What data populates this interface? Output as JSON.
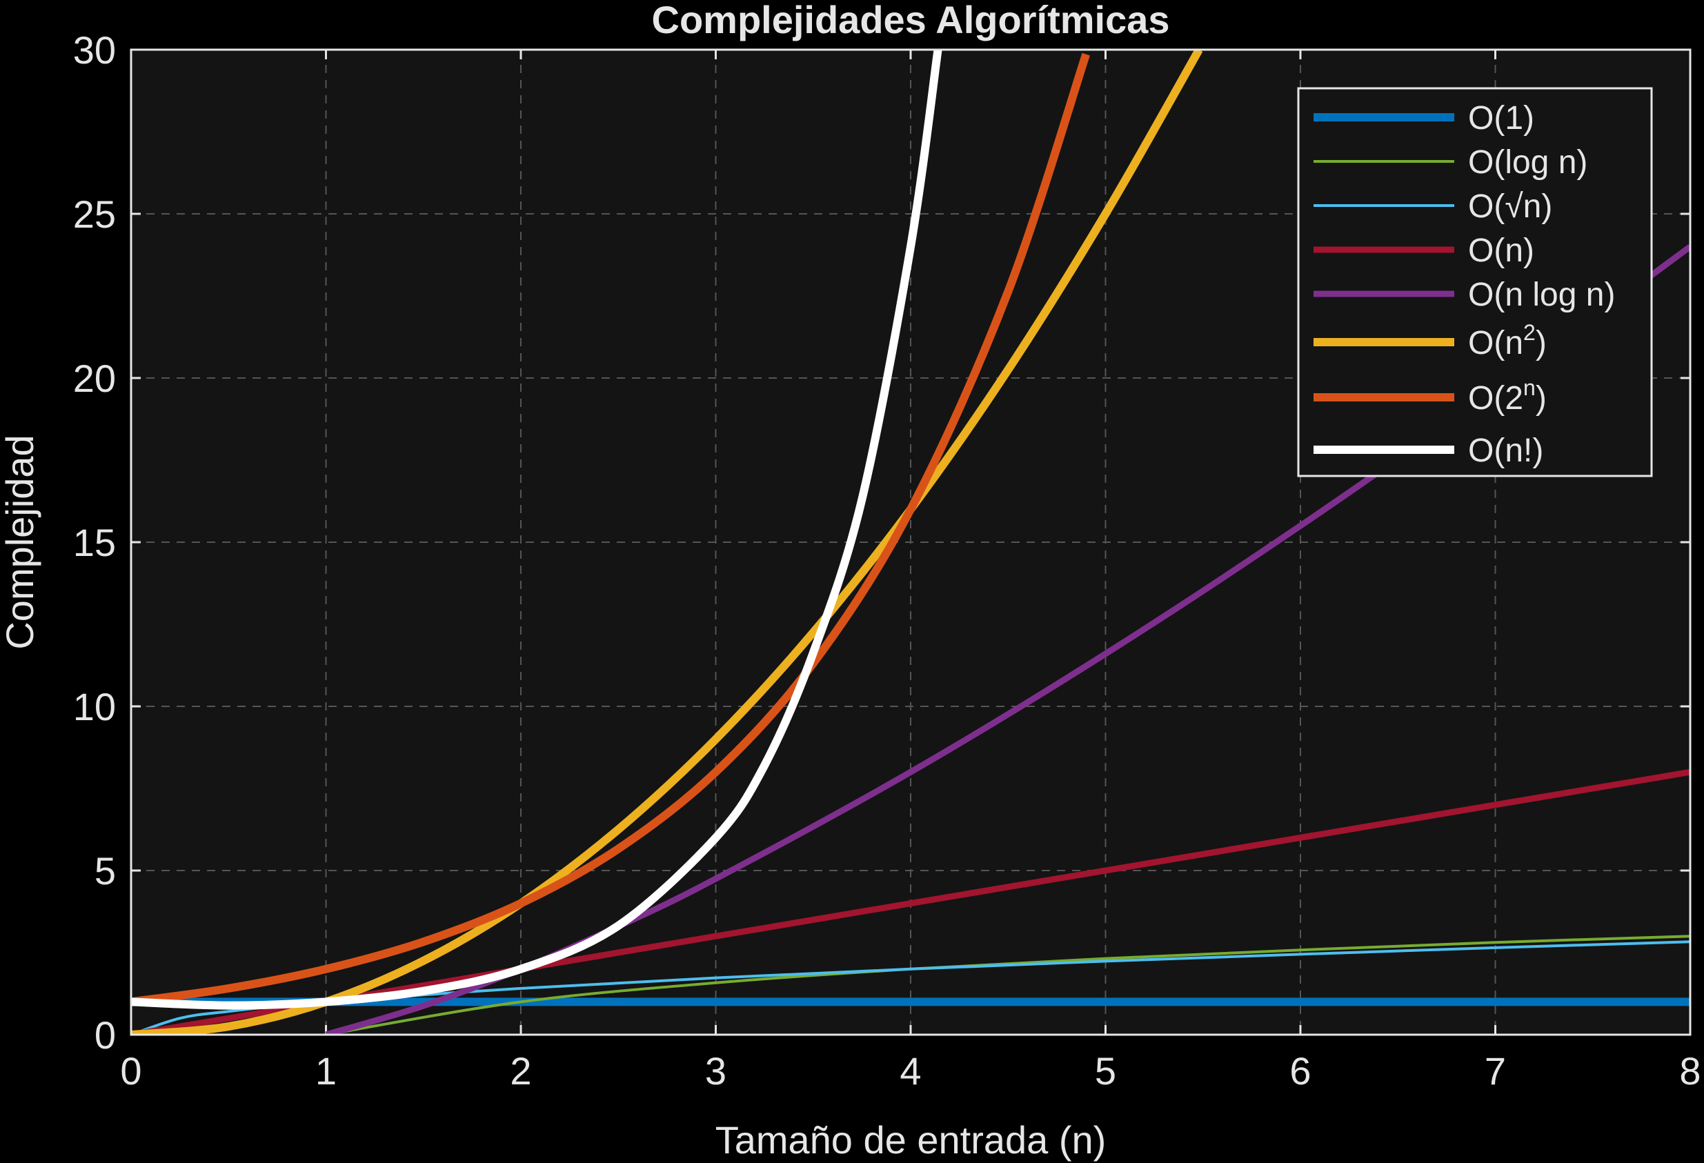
{
  "chart_data": {
    "type": "line",
    "title": "Complejidades Algorítmicas",
    "xlabel": "Tamaño de entrada (n)",
    "ylabel": "Complejidad",
    "xlim": [
      0,
      8
    ],
    "ylim": [
      0,
      30
    ],
    "xticks": [
      "0",
      "1",
      "2",
      "3",
      "4",
      "5",
      "6",
      "7",
      "8"
    ],
    "yticks": [
      "0",
      "5",
      "10",
      "15",
      "20",
      "25",
      "30"
    ],
    "grid": true,
    "legend_position": "top-right",
    "background": "#141414",
    "series": [
      {
        "name": "O(1)",
        "name_base": "O(1)",
        "name_sup": "",
        "name_end": "",
        "color": "#0072BD",
        "width": "thick",
        "points": [
          [
            0,
            1
          ],
          [
            8,
            1
          ]
        ]
      },
      {
        "name": "O(log n)",
        "name_base": "O(log n)",
        "name_sup": "",
        "name_end": "",
        "color": "#77AC30",
        "width": "thin",
        "points": [
          [
            1,
            0
          ],
          [
            2,
            1
          ],
          [
            3,
            1.58
          ],
          [
            4,
            2
          ],
          [
            5,
            2.32
          ],
          [
            6,
            2.58
          ],
          [
            7,
            2.81
          ],
          [
            8,
            3
          ]
        ]
      },
      {
        "name": "O(√n)",
        "name_base": "O(√n)",
        "name_sup": "",
        "name_end": "",
        "color": "#4DBEEE",
        "width": "thin",
        "points": [
          [
            0,
            0
          ],
          [
            0.25,
            0.5
          ],
          [
            0.5,
            0.71
          ],
          [
            1,
            1
          ],
          [
            2,
            1.41
          ],
          [
            3,
            1.73
          ],
          [
            4,
            2
          ],
          [
            5,
            2.24
          ],
          [
            6,
            2.45
          ],
          [
            7,
            2.65
          ],
          [
            8,
            2.83
          ]
        ]
      },
      {
        "name": "O(n)",
        "name_base": "O(n)",
        "name_sup": "",
        "name_end": "",
        "color": "#A2142F",
        "width": "medium",
        "points": [
          [
            0,
            0
          ],
          [
            8,
            8
          ]
        ]
      },
      {
        "name": "O(n log n)",
        "name_base": "O(n log n)",
        "name_sup": "",
        "name_end": "",
        "color": "#7E2F8E",
        "width": "medium",
        "points": [
          [
            1,
            0
          ],
          [
            1.5,
            0.88
          ],
          [
            2,
            2
          ],
          [
            2.5,
            3.3
          ],
          [
            3,
            4.75
          ],
          [
            4,
            8
          ],
          [
            5,
            11.6
          ],
          [
            6,
            15.5
          ],
          [
            7,
            19.65
          ],
          [
            8,
            24
          ]
        ]
      },
      {
        "name": "O(n2)",
        "name_base": "O(n",
        "name_sup": "2",
        "name_end": ")",
        "color": "#EDB120",
        "width": "thick",
        "points": [
          [
            0,
            0
          ],
          [
            0.5,
            0.25
          ],
          [
            1,
            1
          ],
          [
            1.5,
            2.25
          ],
          [
            2,
            4
          ],
          [
            2.5,
            6.25
          ],
          [
            3,
            9
          ],
          [
            3.5,
            12.25
          ],
          [
            4,
            16
          ],
          [
            4.5,
            20.25
          ],
          [
            5,
            25
          ],
          [
            5.48,
            30
          ]
        ]
      },
      {
        "name": "O(2n)",
        "name_base": "O(2",
        "name_sup": "n",
        "name_end": ")",
        "color": "#D95319",
        "width": "thick",
        "points": [
          [
            0,
            1
          ],
          [
            0.5,
            1.41
          ],
          [
            1,
            2
          ],
          [
            1.5,
            2.83
          ],
          [
            2,
            4
          ],
          [
            2.5,
            5.66
          ],
          [
            3,
            8
          ],
          [
            3.5,
            11.31
          ],
          [
            4,
            16
          ],
          [
            4.5,
            22.63
          ],
          [
            4.9,
            29.86
          ]
        ]
      },
      {
        "name": "O(n!)",
        "name_base": "O(n!)",
        "name_sup": "",
        "name_end": "",
        "color": "#FFFFFF",
        "width": "thick",
        "points": [
          [
            0,
            1
          ],
          [
            0.5,
            0.89
          ],
          [
            1,
            1
          ],
          [
            1.5,
            1.33
          ],
          [
            2,
            2
          ],
          [
            2.5,
            3.32
          ],
          [
            3,
            6
          ],
          [
            3.25,
            8.2
          ],
          [
            3.5,
            11.63
          ],
          [
            3.75,
            16.3
          ],
          [
            4,
            24
          ],
          [
            4.14,
            30
          ]
        ]
      }
    ]
  }
}
